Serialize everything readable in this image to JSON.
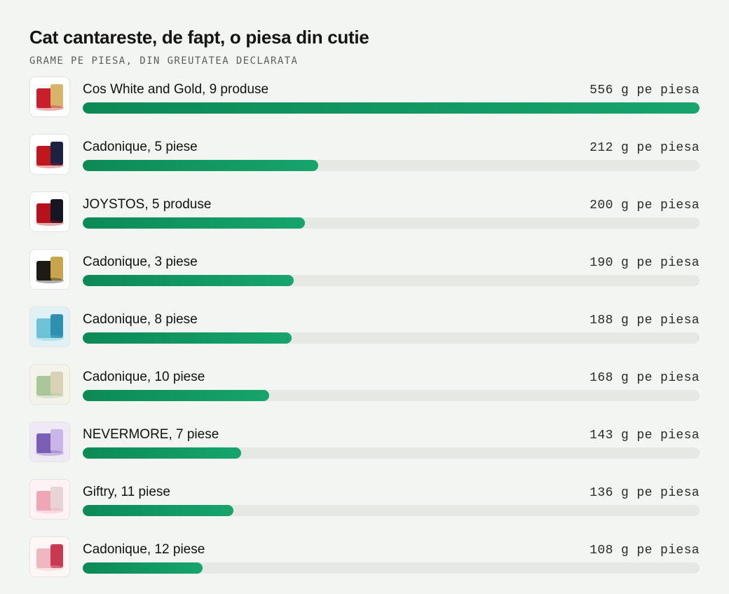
{
  "chart_data": {
    "type": "bar",
    "orientation": "horizontal",
    "title": "Cat cantareste, de fapt, o piesa din cutie",
    "subtitle": "GRAME PE PIESA, DIN GREUTATEA DECLARATA",
    "value_suffix": "g pe piesa",
    "xlim": [
      0,
      556
    ],
    "categories": [
      "Cos White and Gold, 9 produse",
      "Cadonique, 5 piese",
      "JOYSTOS, 5 produse",
      "Cadonique, 3 piese",
      "Cadonique, 8 piese",
      "Cadonique, 10 piese",
      "NEVERMORE, 7 piese",
      "Giftry, 11 piese",
      "Cadonique, 12 piese"
    ],
    "values": [
      556,
      212,
      200,
      190,
      188,
      168,
      143,
      136,
      108
    ],
    "bar_color": "#11985f",
    "track_color": "#e6e8e3",
    "thumbnails": [
      "gift-basket-red-gold-icon",
      "red-thermos-set-icon",
      "red-black-box-set-icon",
      "black-gold-box-icon",
      "blue-spa-set-icon",
      "green-cream-spa-set-icon",
      "purple-spa-set-icon",
      "pink-spa-set-icon",
      "pink-white-box-icon"
    ],
    "thumbnail_colors": [
      [
        "#ffffff",
        "#c8202a",
        "#d8b46a"
      ],
      [
        "#ffffff",
        "#c0161d",
        "#1b2340"
      ],
      [
        "#ffffff",
        "#b5121b",
        "#14171f"
      ],
      [
        "#ffffff",
        "#1e1a14",
        "#c8a44a"
      ],
      [
        "#dff1f5",
        "#6ec3d6",
        "#2f8fb0"
      ],
      [
        "#f4f3ea",
        "#a9c79a",
        "#d9d2b8"
      ],
      [
        "#efe9f6",
        "#7a5fb5",
        "#c9b6e6"
      ],
      [
        "#fff2f4",
        "#f0a7b5",
        "#e7d4d7"
      ],
      [
        "#fff6f6",
        "#f1b7c1",
        "#c83a52"
      ]
    ]
  }
}
